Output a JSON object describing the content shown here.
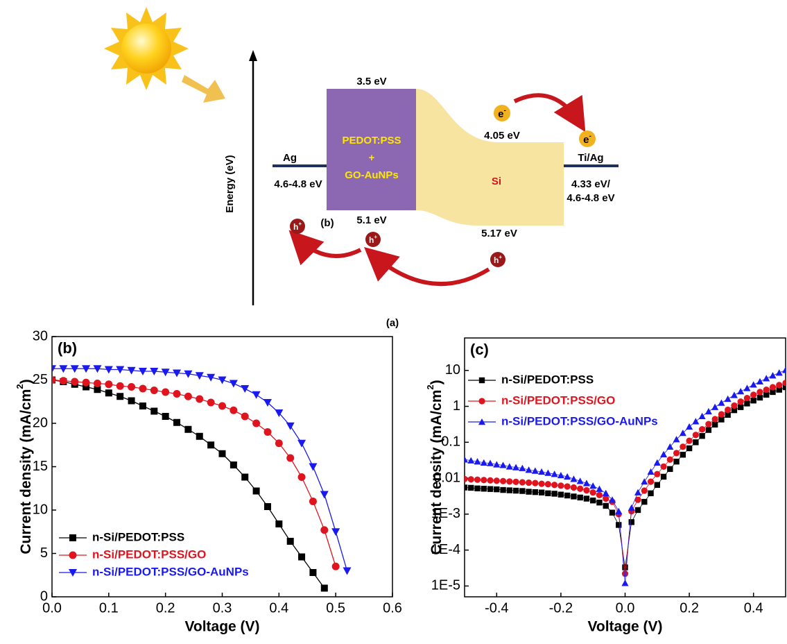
{
  "diagram": {
    "axis_label": "Energy (eV)",
    "pedot": {
      "top": "3.5 eV",
      "lines": [
        "PEDOT:PSS",
        "+",
        "GO-AuNPs"
      ],
      "bottom": "5.1 eV"
    },
    "ag": {
      "label": "Ag",
      "level": "4.6-4.8 eV"
    },
    "si": {
      "label": "Si",
      "top": "4.05 eV",
      "bottom": "5.17 eV"
    },
    "ti_ag": {
      "label": "Ti/Ag",
      "levels": [
        "4.33 eV/",
        "4.6-4.8 eV"
      ]
    },
    "electron": [
      "e",
      "-"
    ],
    "hole": [
      "h",
      "+"
    ],
    "inset_label": "(b)",
    "caption": "(a)"
  },
  "chart_data": [
    {
      "type": "line",
      "title": "(b)",
      "xlabel": "Voltage (V)",
      "ylabel": [
        "Current density (mA/cm",
        "2",
        ")"
      ],
      "xlim": [
        0,
        0.6
      ],
      "ylim": [
        0,
        30
      ],
      "xticks": [
        {
          "value": 0,
          "label": "0.0"
        },
        0.1,
        0.2,
        0.3,
        0.4,
        0.5,
        0.6
      ],
      "yticks": [
        0,
        5,
        10,
        15,
        20,
        25,
        30
      ],
      "log_y": false,
      "legend": "lower left",
      "series": [
        {
          "name": "n-Si/PEDOT:PSS",
          "color": "#000000",
          "marker": "square",
          "x": [
            0,
            0.02,
            0.04,
            0.06,
            0.08,
            0.1,
            0.12,
            0.14,
            0.16,
            0.18,
            0.2,
            0.22,
            0.24,
            0.26,
            0.28,
            0.3,
            0.32,
            0.34,
            0.36,
            0.38,
            0.4,
            0.42,
            0.44,
            0.46,
            0.48
          ],
          "values": [
            25.0,
            24.8,
            24.5,
            24.2,
            23.9,
            23.5,
            23.1,
            22.6,
            22.0,
            21.4,
            20.8,
            20.1,
            19.3,
            18.5,
            17.5,
            16.5,
            15.2,
            13.8,
            12.2,
            10.4,
            8.4,
            6.4,
            4.6,
            2.8,
            1.0
          ]
        },
        {
          "name": "n-Si/PEDOT:PSS/GO",
          "color": "#e0141e",
          "marker": "circle",
          "x": [
            0,
            0.02,
            0.04,
            0.06,
            0.08,
            0.1,
            0.12,
            0.14,
            0.16,
            0.18,
            0.2,
            0.22,
            0.24,
            0.26,
            0.28,
            0.3,
            0.32,
            0.34,
            0.36,
            0.38,
            0.4,
            0.42,
            0.44,
            0.46,
            0.48,
            0.5
          ],
          "values": [
            25.0,
            24.9,
            24.8,
            24.7,
            24.6,
            24.5,
            24.3,
            24.2,
            24.0,
            23.8,
            23.6,
            23.4,
            23.1,
            22.8,
            22.4,
            22.0,
            21.5,
            20.8,
            20.0,
            19.0,
            17.7,
            16.0,
            13.8,
            11.0,
            7.7,
            3.5
          ]
        },
        {
          "name": "n-Si/PEDOT:PSS/GO-AuNPs",
          "color": "#1a1aee",
          "marker": "triangle-down",
          "x": [
            0,
            0.02,
            0.04,
            0.06,
            0.08,
            0.1,
            0.12,
            0.14,
            0.16,
            0.18,
            0.2,
            0.22,
            0.24,
            0.26,
            0.28,
            0.3,
            0.32,
            0.34,
            0.36,
            0.38,
            0.4,
            0.42,
            0.44,
            0.46,
            0.48,
            0.5,
            0.52
          ],
          "values": [
            26.3,
            26.3,
            26.3,
            26.3,
            26.3,
            26.2,
            26.2,
            26.1,
            26.0,
            26.0,
            25.9,
            25.8,
            25.7,
            25.5,
            25.3,
            25.0,
            24.6,
            24.0,
            23.3,
            22.4,
            21.2,
            19.7,
            17.7,
            15.0,
            11.8,
            7.5,
            3.0
          ]
        }
      ]
    },
    {
      "type": "scatter",
      "title": "(c)",
      "xlabel": "Voltage (V)",
      "ylabel": [
        "Current density (mA/cm",
        "2",
        ")"
      ],
      "xlim": [
        -0.5,
        0.5
      ],
      "ylim": [
        5e-06,
        80
      ],
      "xticks": [
        -0.4,
        -0.2,
        {
          "value": 0,
          "label": "0.0"
        },
        0.2,
        0.4
      ],
      "yticks": [
        {
          "value": 1e-05,
          "label": "1E-5"
        },
        {
          "value": 0.0001,
          "label": "1E-4"
        },
        {
          "value": 0.001,
          "label": "1E-3"
        },
        0.01,
        0.1,
        1,
        10
      ],
      "log_y": true,
      "legend": "upper left",
      "series": [
        {
          "name": "n-Si/PEDOT:PSS",
          "color": "#000000",
          "marker": "square",
          "x": [
            -0.5,
            -0.48,
            -0.46,
            -0.44,
            -0.42,
            -0.4,
            -0.38,
            -0.36,
            -0.34,
            -0.32,
            -0.3,
            -0.28,
            -0.26,
            -0.24,
            -0.22,
            -0.2,
            -0.18,
            -0.16,
            -0.14,
            -0.12,
            -0.1,
            -0.08,
            -0.06,
            -0.04,
            -0.02,
            0,
            0.02,
            0.04,
            0.06,
            0.08,
            0.1,
            0.12,
            0.14,
            0.16,
            0.18,
            0.2,
            0.22,
            0.24,
            0.26,
            0.28,
            0.3,
            0.32,
            0.34,
            0.36,
            0.38,
            0.4,
            0.42,
            0.44,
            0.46,
            0.48,
            0.5
          ],
          "values": [
            0.0055,
            0.0054,
            0.0052,
            0.0051,
            0.005,
            0.0049,
            0.0047,
            0.0046,
            0.0045,
            0.0044,
            0.0042,
            0.0041,
            0.004,
            0.0038,
            0.0037,
            0.0035,
            0.0033,
            0.0031,
            0.0029,
            0.0027,
            0.0024,
            0.0021,
            0.0017,
            0.0011,
            0.0005,
            3.3e-05,
            0.0006,
            0.0013,
            0.0022,
            0.0038,
            0.0065,
            0.011,
            0.018,
            0.029,
            0.045,
            0.068,
            0.1,
            0.15,
            0.22,
            0.31,
            0.43,
            0.58,
            0.78,
            0.95,
            1.2,
            1.45,
            1.75,
            2.1,
            2.5,
            2.9,
            3.4
          ]
        },
        {
          "name": "n-Si/PEDOT:PSS/GO",
          "color": "#e0141e",
          "marker": "circle",
          "x": [
            -0.5,
            -0.48,
            -0.46,
            -0.44,
            -0.42,
            -0.4,
            -0.38,
            -0.36,
            -0.34,
            -0.32,
            -0.3,
            -0.28,
            -0.26,
            -0.24,
            -0.22,
            -0.2,
            -0.18,
            -0.16,
            -0.14,
            -0.12,
            -0.1,
            -0.08,
            -0.06,
            -0.04,
            -0.02,
            0,
            0.02,
            0.04,
            0.06,
            0.08,
            0.1,
            0.12,
            0.14,
            0.16,
            0.18,
            0.2,
            0.22,
            0.24,
            0.26,
            0.28,
            0.3,
            0.32,
            0.34,
            0.36,
            0.38,
            0.4,
            0.42,
            0.44,
            0.46,
            0.48,
            0.5
          ],
          "values": [
            0.0095,
            0.0093,
            0.0091,
            0.0089,
            0.0087,
            0.0085,
            0.0083,
            0.0081,
            0.0079,
            0.0077,
            0.0075,
            0.0073,
            0.007,
            0.0068,
            0.0065,
            0.0062,
            0.0059,
            0.0055,
            0.0051,
            0.0046,
            0.004,
            0.0034,
            0.0027,
            0.0022,
            0.001,
            2.2e-05,
            0.0012,
            0.0025,
            0.0045,
            0.008,
            0.013,
            0.021,
            0.033,
            0.05,
            0.075,
            0.11,
            0.16,
            0.23,
            0.32,
            0.44,
            0.6,
            0.8,
            1.05,
            1.35,
            1.7,
            2.1,
            2.5,
            2.9,
            3.4,
            3.9,
            4.5
          ]
        },
        {
          "name": "n-Si/PEDOT:PSS/GO-AuNPs",
          "color": "#1a1aee",
          "marker": "triangle-up",
          "x": [
            -0.5,
            -0.48,
            -0.46,
            -0.44,
            -0.42,
            -0.4,
            -0.38,
            -0.36,
            -0.34,
            -0.32,
            -0.3,
            -0.28,
            -0.26,
            -0.24,
            -0.22,
            -0.2,
            -0.18,
            -0.16,
            -0.14,
            -0.12,
            -0.1,
            -0.08,
            -0.06,
            -0.04,
            -0.02,
            0,
            0.02,
            0.04,
            0.06,
            0.08,
            0.1,
            0.12,
            0.14,
            0.16,
            0.18,
            0.2,
            0.22,
            0.24,
            0.26,
            0.28,
            0.3,
            0.32,
            0.34,
            0.36,
            0.38,
            0.4,
            0.42,
            0.44,
            0.46,
            0.48,
            0.5
          ],
          "values": [
            0.033,
            0.031,
            0.029,
            0.027,
            0.026,
            0.024,
            0.023,
            0.021,
            0.02,
            0.019,
            0.017,
            0.016,
            0.015,
            0.014,
            0.013,
            0.012,
            0.011,
            0.0095,
            0.0083,
            0.0072,
            0.0061,
            0.005,
            0.0038,
            0.0025,
            0.0012,
            1.2e-05,
            0.0015,
            0.004,
            0.008,
            0.015,
            0.027,
            0.046,
            0.075,
            0.12,
            0.18,
            0.27,
            0.38,
            0.53,
            0.72,
            0.95,
            1.25,
            1.6,
            2.05,
            2.6,
            3.2,
            4.0,
            4.9,
            6.0,
            7.2,
            8.6,
            10.2
          ]
        }
      ]
    }
  ]
}
